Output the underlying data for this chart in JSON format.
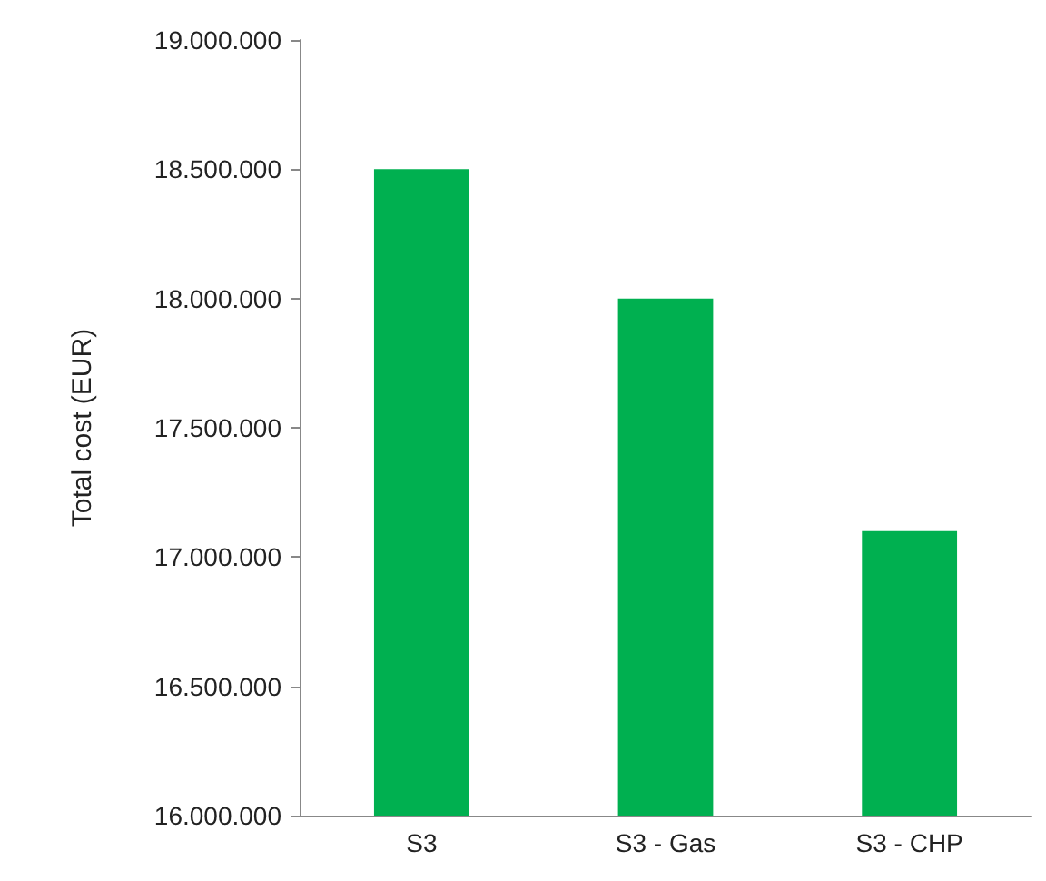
{
  "chart_data": {
    "type": "bar",
    "ylabel": "Total cost (EUR)",
    "categories": [
      "S3",
      "S3 - Gas",
      "S3 - CHP"
    ],
    "values": [
      18500000,
      18000000,
      17100000
    ],
    "color": "#00b050",
    "ylim": [
      16000000,
      19000000
    ],
    "yticks": [
      {
        "value": 16000000,
        "label": "16.000.000"
      },
      {
        "value": 16500000,
        "label": "16.500.000"
      },
      {
        "value": 17000000,
        "label": "17.000.000"
      },
      {
        "value": 17500000,
        "label": "17.500.000"
      },
      {
        "value": 18000000,
        "label": "18.000.000"
      },
      {
        "value": 18500000,
        "label": "18.500.000"
      },
      {
        "value": 19000000,
        "label": "19.000.000"
      }
    ],
    "grid": false
  }
}
